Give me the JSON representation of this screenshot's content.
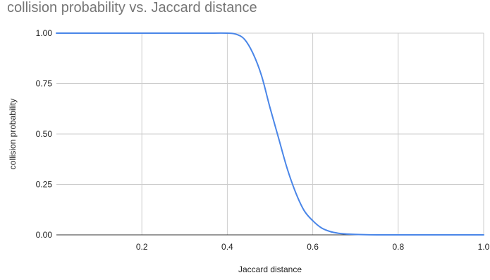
{
  "chart_data": {
    "type": "line",
    "title": "collision probability vs. Jaccard distance",
    "xlabel": "Jaccard distance",
    "ylabel": "collision probability",
    "xlim": [
      0.0,
      1.0
    ],
    "ylim": [
      0.0,
      1.0
    ],
    "x_ticks": [
      {
        "value": 0.2,
        "label": "0.2"
      },
      {
        "value": 0.4,
        "label": "0.4"
      },
      {
        "value": 0.6,
        "label": "0.6"
      },
      {
        "value": 0.8,
        "label": "0.8"
      },
      {
        "value": 1.0,
        "label": "1.0"
      }
    ],
    "y_ticks": [
      {
        "value": 0.0,
        "label": "0.00"
      },
      {
        "value": 0.25,
        "label": "0.25"
      },
      {
        "value": 0.5,
        "label": "0.50"
      },
      {
        "value": 0.75,
        "label": "0.75"
      },
      {
        "value": 1.0,
        "label": "1.00"
      }
    ],
    "grid": true,
    "legend": "none",
    "series": [
      {
        "color": "#4a86e8",
        "x": [
          0.0,
          0.05,
          0.1,
          0.15,
          0.2,
          0.25,
          0.3,
          0.35,
          0.4,
          0.42,
          0.44,
          0.46,
          0.48,
          0.5,
          0.52,
          0.54,
          0.56,
          0.58,
          0.6,
          0.62,
          0.64,
          0.66,
          0.68,
          0.7,
          0.75,
          0.8,
          0.85,
          0.9,
          0.95,
          1.0
        ],
        "y": [
          1.0,
          1.0,
          1.0,
          1.0,
          1.0,
          1.0,
          1.0,
          1.0,
          1.0,
          0.995,
          0.97,
          0.9,
          0.79,
          0.63,
          0.48,
          0.33,
          0.21,
          0.12,
          0.07,
          0.035,
          0.017,
          0.008,
          0.004,
          0.002,
          0.0,
          0.0,
          0.0,
          0.0,
          0.0,
          0.0
        ]
      }
    ]
  }
}
